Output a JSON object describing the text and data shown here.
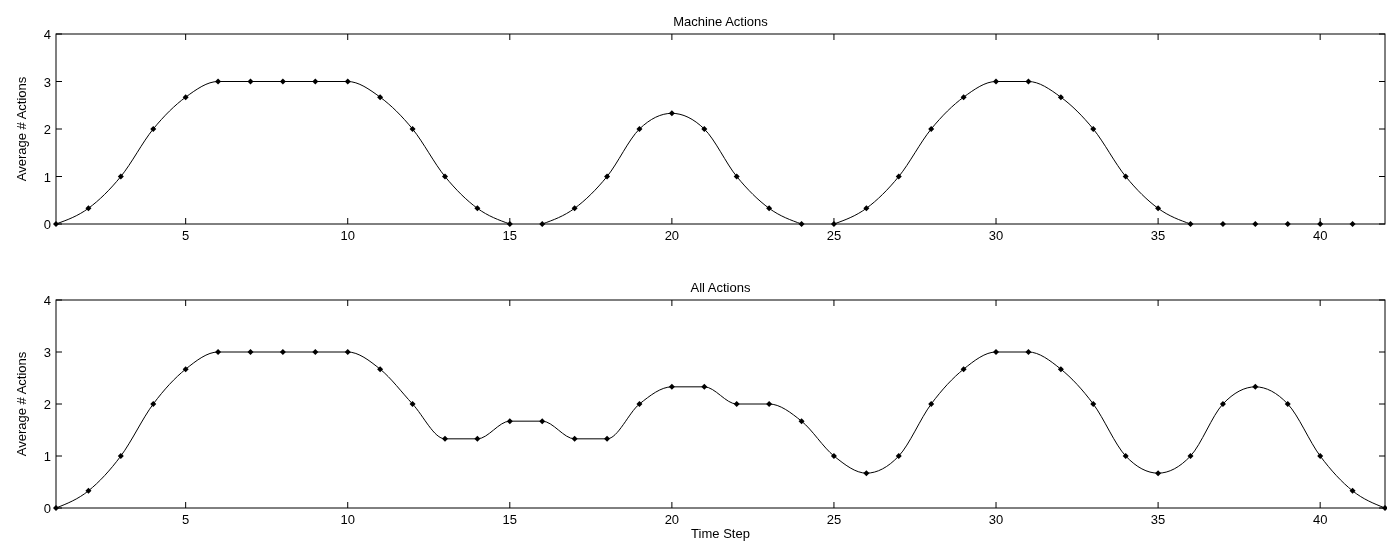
{
  "chart_data": [
    {
      "type": "line",
      "title": "Machine Actions",
      "ylabel": "Average # Actions",
      "xlim": [
        1,
        42
      ],
      "xticks": [
        5,
        10,
        15,
        20,
        25,
        30,
        35,
        40
      ],
      "ylim": [
        0,
        4
      ],
      "yticks": [
        0,
        1,
        2,
        3,
        4
      ],
      "grid": false,
      "marker": "diamond",
      "line_style": "solid",
      "series": [
        {
          "color": "#000000",
          "x": [
            1,
            2,
            3,
            4,
            5,
            6,
            7,
            8,
            9,
            10,
            11,
            12,
            13,
            14,
            15
          ],
          "values": [
            0,
            0.33,
            1,
            2,
            2.67,
            3,
            3,
            3,
            3,
            3,
            2.67,
            2,
            1,
            0.33,
            0
          ]
        },
        {
          "color": "#000000",
          "x": [
            16,
            17,
            18,
            19,
            20,
            21,
            22,
            23,
            24
          ],
          "values": [
            0,
            0.33,
            1,
            2,
            2.33,
            2,
            1,
            0.33,
            0
          ]
        },
        {
          "color": "#000000",
          "x": [
            25,
            26,
            27,
            28,
            29,
            30,
            31,
            32,
            33,
            34,
            35,
            36
          ],
          "values": [
            0,
            0.33,
            1,
            2,
            2.67,
            3,
            3,
            2.67,
            2,
            1,
            0.33,
            0
          ]
        },
        {
          "type": "scatter",
          "color": "#000000",
          "x": [
            37,
            38,
            39,
            40,
            41
          ],
          "values": [
            0,
            0,
            0,
            0,
            0
          ]
        }
      ]
    },
    {
      "type": "line",
      "title": "All Actions",
      "xlabel": "Time Step",
      "ylabel": "Average # Actions",
      "xlim": [
        1,
        42
      ],
      "xticks": [
        5,
        10,
        15,
        20,
        25,
        30,
        35,
        40
      ],
      "ylim": [
        0,
        4
      ],
      "yticks": [
        0,
        1,
        2,
        3,
        4
      ],
      "grid": false,
      "marker": "diamond",
      "line_style": "solid",
      "series": [
        {
          "color": "#000000",
          "x": [
            1,
            2,
            3,
            4,
            5,
            6,
            7,
            8,
            9,
            10,
            11,
            12,
            13,
            14,
            15,
            16,
            17,
            18,
            19,
            20,
            21,
            22,
            23,
            24,
            25,
            26,
            27,
            28,
            29,
            30,
            31,
            32,
            33,
            34,
            35,
            36,
            37,
            38,
            39,
            40,
            41,
            42
          ],
          "values": [
            0,
            0.33,
            1,
            2,
            2.67,
            3,
            3,
            3,
            3,
            3,
            2.67,
            2,
            1.33,
            1.33,
            1.67,
            1.67,
            1.33,
            1.33,
            2,
            2.33,
            2.33,
            2,
            2,
            1.67,
            1,
            0.67,
            1,
            2,
            2.67,
            3,
            3,
            2.67,
            2,
            1,
            0.67,
            1,
            2,
            2.33,
            2,
            1,
            0.33,
            0
          ]
        }
      ]
    }
  ]
}
